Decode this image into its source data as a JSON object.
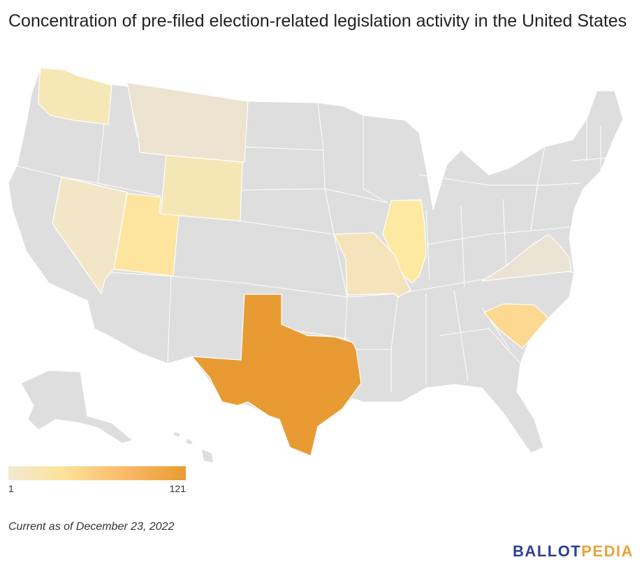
{
  "title": "Concentration of pre-filed election-related legislation activity in the United States",
  "legend": {
    "min_label": "1",
    "max_label": "121",
    "min_color": "#f1e8d3",
    "mid_color": "#fbe49a",
    "max_color": "#e89b32"
  },
  "note": "Current as of December 23, 2022",
  "logo": {
    "part1": "BALLOT",
    "part2": "PEDIA"
  },
  "colors": {
    "no_data": "#dedede",
    "border": "#ffffff"
  },
  "highlighted_states": [
    {
      "name": "Texas",
      "color": "#e89b32"
    },
    {
      "name": "South Carolina",
      "color": "#fcd891"
    },
    {
      "name": "Illinois",
      "color": "#fde9a1"
    },
    {
      "name": "Utah",
      "color": "#fde59f"
    },
    {
      "name": "Missouri",
      "color": "#f5e3bb"
    },
    {
      "name": "Wyoming",
      "color": "#f5e6b5"
    },
    {
      "name": "Washington",
      "color": "#f6e7b7"
    },
    {
      "name": "Nevada",
      "color": "#f3e6c6"
    },
    {
      "name": "Montana",
      "color": "#ece3d0"
    },
    {
      "name": "Virginia",
      "color": "#ebe3d3"
    }
  ]
}
